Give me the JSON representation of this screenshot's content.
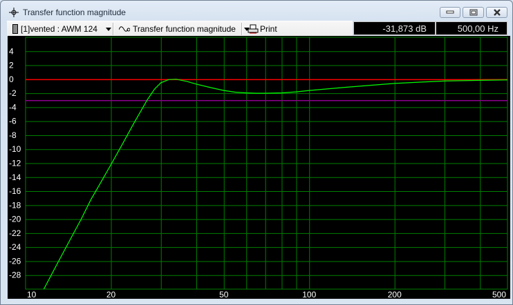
{
  "window": {
    "title": "Transfer function magnitude",
    "icon": "crosshair-icon",
    "controls": [
      "minimize-icon",
      "maximize-icon",
      "close-icon"
    ]
  },
  "toolbar": {
    "driver_select": "[1]vented : AWM 124",
    "driver_icon": "speaker-icon",
    "view_select": "Transfer function magnitude",
    "view_icon": "wave-icon",
    "print_label": "Print",
    "print_icon": "printer-icon"
  },
  "readout": {
    "level": "-31,873 dB",
    "frequency": "500,00 Hz"
  },
  "colors": {
    "background": "#000000",
    "grid": "#008000",
    "curve": "#00ff00",
    "reference_0db": "#ff0000",
    "reference_minus3db": "#8b008b"
  },
  "chart_data": {
    "type": "line",
    "title": "",
    "xlabel": "",
    "ylabel": "",
    "x_scale": "log",
    "xlim": [
      10,
      500
    ],
    "ylim": [
      -30,
      6
    ],
    "grid": true,
    "x_ticks": [
      10,
      20,
      50,
      100,
      200,
      500
    ],
    "x_tick_labels": [
      "10",
      "20",
      "50",
      "100",
      "200",
      "500"
    ],
    "x_gridlines": [
      20,
      30,
      40,
      50,
      60,
      70,
      80,
      90,
      100,
      200,
      300,
      400
    ],
    "y_ticks": [
      4,
      2,
      0,
      -2,
      -4,
      -6,
      -8,
      -10,
      -12,
      -14,
      -16,
      -18,
      -20,
      -22,
      -24,
      -26,
      -28
    ],
    "y_tick_labels": [
      "4",
      "2",
      "0",
      "-2",
      "-4",
      "-6",
      "-8",
      "-10",
      "-12",
      "-14",
      "-16",
      "-18",
      "-20",
      "-22",
      "-24",
      "-26",
      "-28"
    ],
    "reference_lines": [
      {
        "y": 0,
        "color": "#ff0000"
      },
      {
        "y": -3,
        "color": "#8b008b"
      }
    ],
    "series": [
      {
        "color": "#00ff00",
        "x": [
          11.6,
          13,
          14.5,
          15.7,
          17,
          18.5,
          20,
          22,
          24,
          26.8,
          28.5,
          30,
          32,
          34,
          37,
          40,
          45,
          50,
          55,
          60,
          65,
          70,
          80,
          90,
          100,
          130,
          160,
          200,
          250,
          300,
          400,
          500
        ],
        "y": [
          -30,
          -26.2,
          -22.6,
          -20,
          -17.2,
          -14.6,
          -12.2,
          -9.2,
          -6.4,
          -3,
          -1.4,
          -0.5,
          -0.05,
          0,
          -0.3,
          -0.7,
          -1.2,
          -1.6,
          -1.85,
          -1.95,
          -2.0,
          -2.0,
          -1.95,
          -1.8,
          -1.6,
          -1.2,
          -0.9,
          -0.6,
          -0.4,
          -0.25,
          -0.15,
          -0.1
        ]
      }
    ]
  }
}
